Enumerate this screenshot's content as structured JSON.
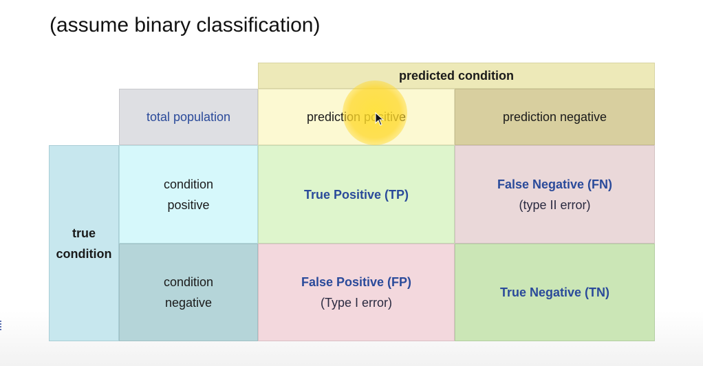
{
  "title": "(assume binary classification)",
  "header": {
    "predicted_condition": "predicted condition",
    "total_population": "total population",
    "prediction_positive": "prediction positive",
    "prediction_negative": "prediction negative"
  },
  "rows": {
    "true_condition": [
      "true",
      "condition"
    ],
    "condition_positive": [
      "condition",
      "positive"
    ],
    "condition_negative": [
      "condition",
      "negative"
    ]
  },
  "cells": {
    "tp": {
      "label": "True Positive (TP)"
    },
    "fn": {
      "label": "False Negative (FN)",
      "note": "(type II error)"
    },
    "fp": {
      "label": "False Positive (FP)",
      "note": "(Type I error)"
    },
    "tn": {
      "label": "True Negative (TN)"
    }
  },
  "colors": {
    "predicted_header": "#ede9b8",
    "total_population": "#dedfe3",
    "prediction_positive": "#fcf9d2",
    "prediction_negative": "#d8cf9f",
    "true_condition": "#c7e7ee",
    "condition_positive": "#d6f8fb",
    "condition_negative": "#b5d5d9",
    "true_positive": "#def5cc",
    "false_negative": "#ead8d9",
    "false_positive": "#f3d8dd",
    "true_negative": "#cbe6b6",
    "link_text": "#2a4a9a",
    "cursor_highlight": "#ffde28"
  }
}
